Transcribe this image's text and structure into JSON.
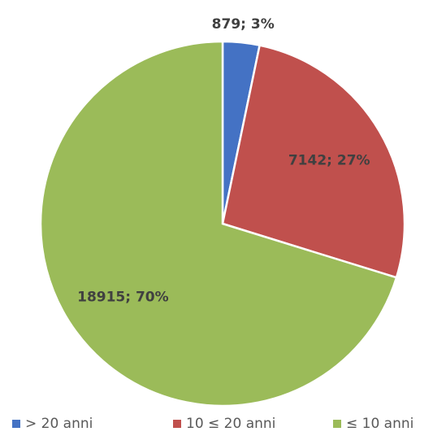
{
  "chart_data": {
    "type": "pie",
    "categories": [
      "> 20 anni",
      "10 ≤ 20 anni",
      "≤ 10 anni"
    ],
    "values": [
      879,
      7142,
      18915
    ],
    "value_labels": [
      "879; 3%",
      "7142; 27%",
      "18915; 70%"
    ],
    "colors": [
      "#4472c4",
      "#c0504d",
      "#9bbb59"
    ],
    "legend": "bottom"
  }
}
